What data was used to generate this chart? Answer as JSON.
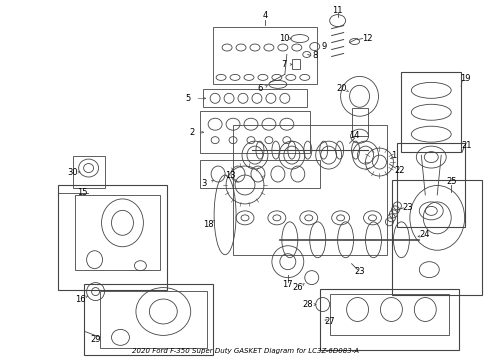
{
  "title": "2020 Ford F-350 Super Duty GASKET Diagram for LC3Z-6D083-A",
  "bg": "#ffffff",
  "lc": "#444444",
  "tc": "#000000",
  "fig_w": 4.9,
  "fig_h": 3.6,
  "dpi": 100
}
